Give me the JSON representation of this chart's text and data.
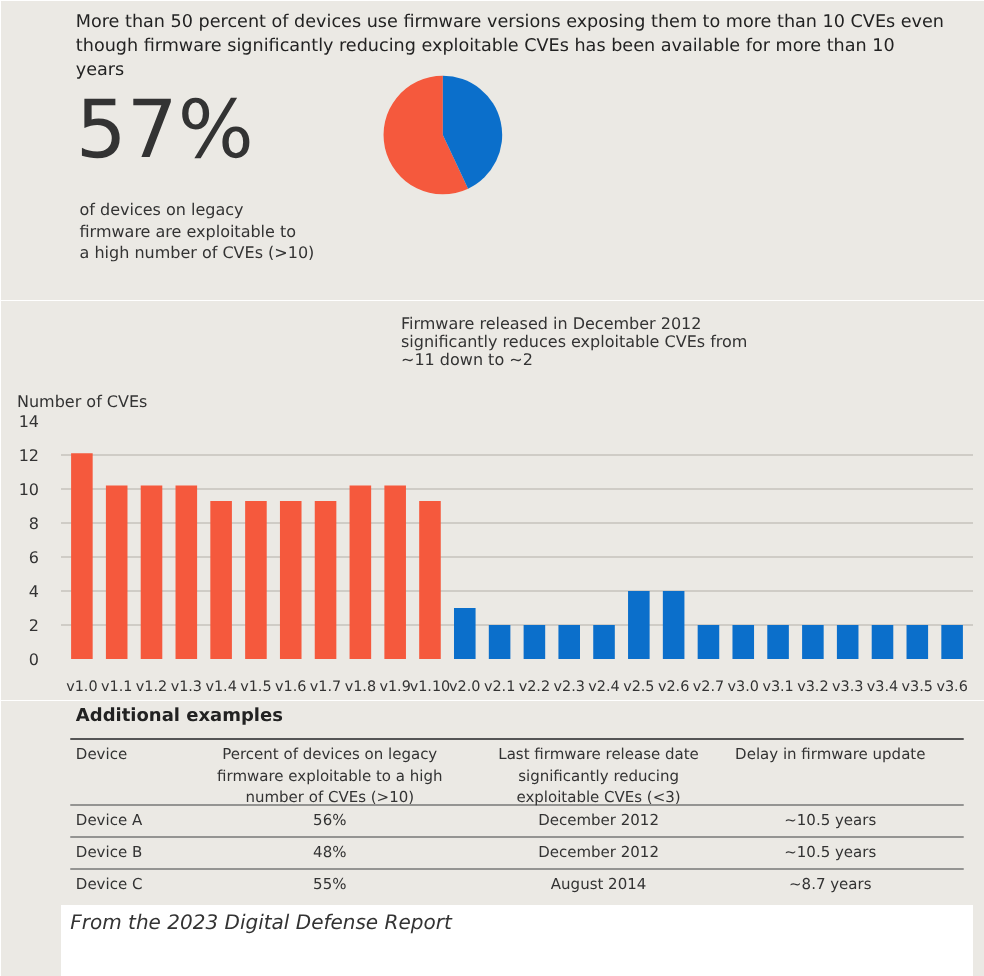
{
  "chart_data": [
    {
      "type": "pie",
      "title": "More than 50 percent of devices use firmware versions exposing them to more than 10 CVEs even though firmware significantly reducing exploitable CVEs has been available for more than 10 years",
      "categories": [
        null,
        null
      ],
      "values": [
        57,
        43
      ],
      "colors": [
        "#f5593d",
        "#0b6fcb"
      ],
      "annotations": [
        "57%",
        "of devices on legacy firmware are exploitable to a high number of CVEs (>10)"
      ]
    },
    {
      "type": "bar",
      "ylabel": "Number of CVEs",
      "categories": [
        "v1.0",
        "v1.1",
        "v1.2",
        "v1.3",
        "v1.4",
        "v1.5",
        "v1.6",
        "v1.7",
        "v1.8",
        "v1.9",
        "v1.10",
        "v2.0",
        "v2.1",
        "v2.2",
        "v2.3",
        "v2.4",
        "v2.5",
        "v2.6",
        "v2.7",
        "v3.0",
        "v3.1",
        "v3.2",
        "v3.3",
        "v3.4",
        "v3.5",
        "v3.6"
      ],
      "values": [
        12.1,
        10.2,
        10.2,
        10.2,
        9.3,
        9.3,
        9.3,
        9.3,
        10.2,
        10.2,
        9.3,
        3,
        2,
        2,
        2,
        2,
        4,
        4,
        2,
        2,
        2,
        2,
        2,
        2,
        2,
        2
      ],
      "colors": [
        "#f5593d",
        "#f5593d",
        "#f5593d",
        "#f5593d",
        "#f5593d",
        "#f5593d",
        "#f5593d",
        "#f5593d",
        "#f5593d",
        "#f5593d",
        "#f5593d",
        "#0b6fcb",
        "#0b6fcb",
        "#0b6fcb",
        "#0b6fcb",
        "#0b6fcb",
        "#0b6fcb",
        "#0b6fcb",
        "#0b6fcb",
        "#0b6fcb",
        "#0b6fcb",
        "#0b6fcb",
        "#0b6fcb",
        "#0b6fcb",
        "#0b6fcb",
        "#0b6fcb"
      ],
      "ylim": [
        0,
        14
      ],
      "yticks": [
        0,
        2,
        4,
        6,
        8,
        10,
        12,
        14
      ],
      "grid": "y",
      "annotations": [
        "Firmware released in December 2012 significantly reduces exploitable CVEs from ~11 down to ~2"
      ]
    },
    {
      "type": "other",
      "title": "Additional examples",
      "annotations": [
        "Device",
        "Percent of devices on legacy firmware exploitable to a high number of CVEs (>10)",
        "Last firmware release date significantly reducing exploitable CVEs (<3)",
        "Delay in firmware update",
        "Device A",
        "56%",
        "December 2012",
        "~10.5 years",
        "Device B",
        "48%",
        "December 2012",
        "~10.5 years",
        "Device C",
        "55%",
        "August 2014",
        "~8.7 years",
        "From the 2023 Digital Defense Report"
      ]
    }
  ]
}
